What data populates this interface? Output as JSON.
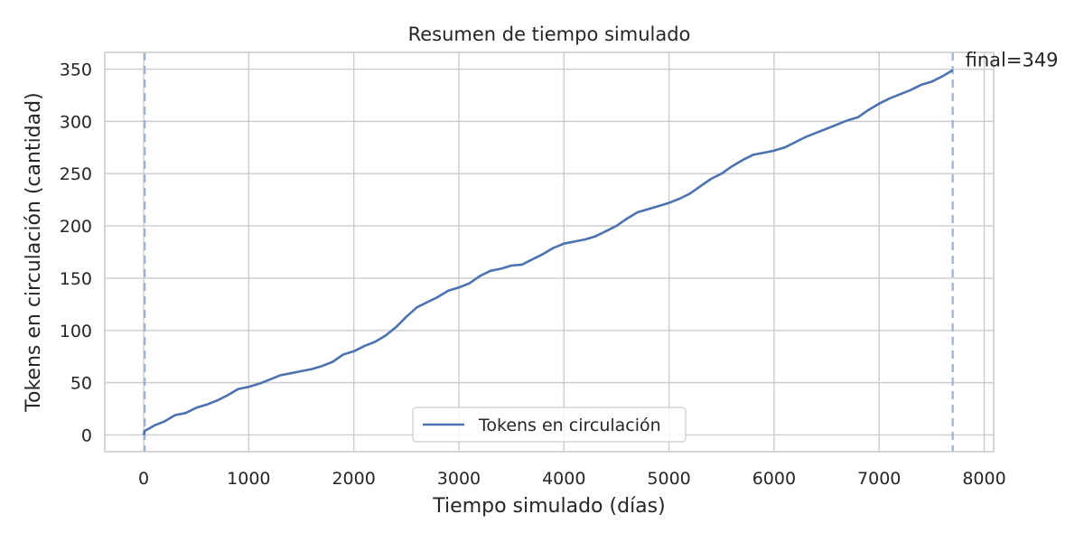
{
  "chart_data": {
    "type": "line",
    "title": "Resumen de tiempo simulado",
    "xlabel": "Tiempo simulado (días)",
    "ylabel": "Tokens en circulación (cantidad)",
    "xlim": [
      -370,
      8090
    ],
    "ylim": [
      -16,
      366
    ],
    "xticks": [
      0,
      1000,
      2000,
      3000,
      4000,
      5000,
      6000,
      7000,
      8000
    ],
    "yticks": [
      0,
      50,
      100,
      150,
      200,
      250,
      300,
      350
    ],
    "grid": true,
    "legend": {
      "position": "lower-center",
      "entries": [
        "Tokens en circulación"
      ]
    },
    "colors": {
      "series": "#4c72b0",
      "grid": "#cccccc",
      "vline": "#9bb0d6"
    },
    "vlines": [
      10,
      7700
    ],
    "annotations": [
      {
        "text": "final=349",
        "x": 7700,
        "y": 349
      }
    ],
    "series": [
      {
        "name": "Tokens en circulación",
        "x": [
          0,
          10,
          50,
          100,
          200,
          300,
          400,
          500,
          600,
          700,
          800,
          900,
          1000,
          1100,
          1200,
          1300,
          1400,
          1500,
          1600,
          1700,
          1800,
          1900,
          2000,
          2100,
          2200,
          2300,
          2400,
          2500,
          2600,
          2700,
          2800,
          2900,
          3000,
          3100,
          3200,
          3300,
          3400,
          3500,
          3600,
          3700,
          3800,
          3900,
          4000,
          4100,
          4200,
          4300,
          4400,
          4500,
          4600,
          4700,
          4800,
          4900,
          5000,
          5100,
          5200,
          5300,
          5400,
          5500,
          5600,
          5700,
          5800,
          5900,
          6000,
          6100,
          6200,
          6300,
          6400,
          6500,
          6600,
          6700,
          6800,
          6900,
          7000,
          7100,
          7200,
          7300,
          7400,
          7500,
          7600,
          7700
        ],
        "y": [
          0,
          4,
          6,
          9,
          13,
          19,
          21,
          26,
          29,
          33,
          38,
          44,
          46,
          49,
          53,
          57,
          59,
          61,
          63,
          66,
          70,
          77,
          80,
          85,
          89,
          95,
          103,
          113,
          122,
          127,
          132,
          138,
          141,
          145,
          152,
          157,
          159,
          162,
          163,
          168,
          173,
          179,
          183,
          185,
          187,
          190,
          195,
          200,
          207,
          213,
          216,
          219,
          222,
          226,
          231,
          238,
          245,
          250,
          257,
          263,
          268,
          270,
          272,
          275,
          280,
          285,
          289,
          293,
          297,
          301,
          304,
          311,
          317,
          322,
          326,
          330,
          335,
          338,
          343,
          349
        ]
      }
    ]
  }
}
